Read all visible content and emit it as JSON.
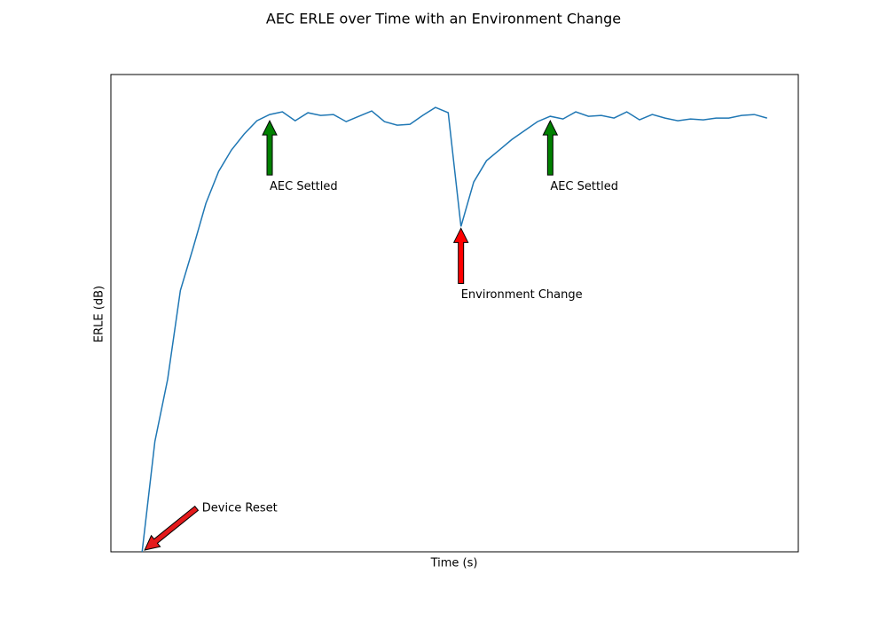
{
  "chart_data": {
    "type": "line",
    "title": "AEC ERLE over Time with an Environment Change",
    "x_label": "Time (s)",
    "y_label": "ERLE (dB)",
    "x": [
      0,
      1,
      2,
      3,
      4,
      5,
      6,
      7,
      8,
      9,
      10,
      11,
      12,
      13,
      14,
      15,
      16,
      17,
      18,
      19,
      20,
      21,
      22,
      23,
      24,
      25,
      26,
      27,
      28,
      29,
      30,
      31,
      32,
      33,
      34,
      35,
      36,
      37,
      38,
      39,
      40,
      41,
      42,
      43,
      44,
      45,
      46,
      47,
      48,
      49
    ],
    "series": [
      {
        "color": "#1f77b4",
        "values": [
          0,
          12.4,
          19.4,
          29.4,
          34.2,
          39.2,
          42.8,
          45.2,
          47.0,
          48.5,
          49.2,
          49.5,
          48.5,
          49.4,
          49.1,
          49.2,
          48.4,
          49.0,
          49.6,
          48.4,
          48.0,
          48.1,
          49.1,
          50.0,
          49.4,
          36.6,
          41.6,
          44.0,
          45.2,
          46.4,
          47.4,
          48.4,
          49.0,
          48.7,
          49.5,
          49.0,
          49.1,
          48.8,
          49.5,
          48.6,
          49.2,
          48.8,
          48.5,
          48.7,
          48.6,
          48.8,
          48.8,
          49.1,
          49.2,
          48.8
        ]
      }
    ],
    "xlim": [
      -2.45,
      51.45
    ],
    "ylim": [
      0,
      53.7
    ],
    "annotations": [
      {
        "text": "Device Reset",
        "x": 0.2,
        "y": 0.2,
        "text_x": 4.7,
        "text_y": 5.4,
        "color": "#e41a1c"
      },
      {
        "text": "AEC Settled",
        "x": 10,
        "y": 48.5,
        "text_x": 10,
        "text_y": 41.6,
        "color": "#008000"
      },
      {
        "text": "Environment Change",
        "x": 25,
        "y": 36.4,
        "text_x": 25,
        "text_y": 29.4,
        "color": "#ff0000"
      },
      {
        "text": "AEC Settled",
        "x": 32,
        "y": 48.5,
        "text_x": 32,
        "text_y": 41.6,
        "color": "#008000"
      }
    ]
  }
}
